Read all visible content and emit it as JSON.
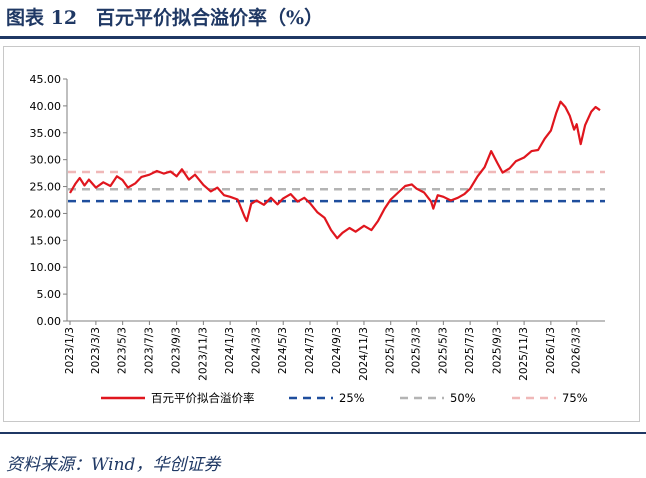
{
  "header": {
    "title": "图表 12　百元平价拟合溢价率（%）"
  },
  "footer": {
    "source": "资料来源：Wind，华创证券"
  },
  "colors": {
    "title": "#1f3864",
    "series_main": "#e0161e",
    "p25": "#1f4e9d",
    "p50": "#b4b4b4",
    "p75": "#f0b8b8"
  },
  "chart_data": {
    "type": "line",
    "ylim": [
      0,
      45
    ],
    "yticks": [
      "0.00",
      "5.00",
      "10.00",
      "15.00",
      "20.00",
      "25.00",
      "30.00",
      "35.00",
      "40.00",
      "45.00"
    ],
    "xticks": [
      "2023/1/3",
      "2023/3/3",
      "2023/5/3",
      "2023/7/3",
      "2023/9/3",
      "2023/11/3",
      "2024/1/3",
      "2024/3/3",
      "2024/5/3",
      "2024/7/3",
      "2024/9/3",
      "2024/11/3",
      "2025/1/3",
      "2025/3/3",
      "2025/5/3",
      "2025/7/3",
      "2025/9/3",
      "2025/11/3",
      "2026/1/3",
      "2026/3/3"
    ],
    "series": [
      {
        "name": "百元平价拟合溢价率",
        "color": "#e0161e",
        "points": [
          [
            "2023/1/3",
            23.8
          ],
          [
            "2023/1/15",
            25.5
          ],
          [
            "2023/1/25",
            26.6
          ],
          [
            "2023/2/5",
            25.2
          ],
          [
            "2023/2/15",
            26.3
          ],
          [
            "2023/3/3",
            24.8
          ],
          [
            "2023/3/20",
            25.8
          ],
          [
            "2023/4/5",
            25.1
          ],
          [
            "2023/4/20",
            26.9
          ],
          [
            "2023/5/3",
            26.2
          ],
          [
            "2023/5/15",
            24.8
          ],
          [
            "2023/6/1",
            25.6
          ],
          [
            "2023/6/15",
            26.8
          ],
          [
            "2023/7/3",
            27.2
          ],
          [
            "2023/7/20",
            27.9
          ],
          [
            "2023/8/5",
            27.4
          ],
          [
            "2023/8/20",
            27.8
          ],
          [
            "2023/9/3",
            26.9
          ],
          [
            "2023/9/15",
            28.2
          ],
          [
            "2023/10/1",
            26.3
          ],
          [
            "2023/10/15",
            27.2
          ],
          [
            "2023/11/3",
            25.3
          ],
          [
            "2023/11/20",
            24.1
          ],
          [
            "2023/12/5",
            24.8
          ],
          [
            "2023/12/20",
            23.4
          ],
          [
            "2024/1/3",
            23.1
          ],
          [
            "2024/1/20",
            22.6
          ],
          [
            "2024/2/5",
            19.4
          ],
          [
            "2024/2/10",
            18.6
          ],
          [
            "2024/2/20",
            21.8
          ],
          [
            "2024/3/3",
            22.4
          ],
          [
            "2024/3/20",
            21.6
          ],
          [
            "2024/4/5",
            22.9
          ],
          [
            "2024/4/20",
            21.7
          ],
          [
            "2024/5/3",
            22.8
          ],
          [
            "2024/5/20",
            23.6
          ],
          [
            "2024/6/5",
            22.2
          ],
          [
            "2024/6/20",
            22.9
          ],
          [
            "2024/7/3",
            21.9
          ],
          [
            "2024/7/20",
            20.2
          ],
          [
            "2024/8/5",
            19.2
          ],
          [
            "2024/8/20",
            16.9
          ],
          [
            "2024/9/3",
            15.4
          ],
          [
            "2024/9/15",
            16.4
          ],
          [
            "2024/10/1",
            17.3
          ],
          [
            "2024/10/15",
            16.6
          ],
          [
            "2024/11/3",
            17.7
          ],
          [
            "2024/11/20",
            16.9
          ],
          [
            "2024/12/5",
            18.6
          ],
          [
            "2024/12/20",
            20.9
          ],
          [
            "2025/1/3",
            22.6
          ],
          [
            "2025/1/20",
            23.9
          ],
          [
            "2025/2/5",
            25.1
          ],
          [
            "2025/2/20",
            25.4
          ],
          [
            "2025/3/3",
            24.6
          ],
          [
            "2025/3/20",
            23.9
          ],
          [
            "2025/4/5",
            22.2
          ],
          [
            "2025/4/10",
            20.9
          ],
          [
            "2025/4/20",
            23.4
          ],
          [
            "2025/5/3",
            23.1
          ],
          [
            "2025/5/20",
            22.4
          ],
          [
            "2025/6/5",
            22.9
          ],
          [
            "2025/6/20",
            23.6
          ],
          [
            "2025/7/3",
            24.6
          ],
          [
            "2025/7/20",
            26.9
          ],
          [
            "2025/8/5",
            28.6
          ],
          [
            "2025/8/20",
            31.6
          ],
          [
            "2025/9/3",
            29.4
          ],
          [
            "2025/9/15",
            27.6
          ],
          [
            "2025/10/1",
            28.4
          ],
          [
            "2025/10/15",
            29.7
          ],
          [
            "2025/11/3",
            30.4
          ],
          [
            "2025/11/20",
            31.6
          ],
          [
            "2025/12/5",
            31.8
          ],
          [
            "2025/12/20",
            33.9
          ],
          [
            "2026/1/3",
            35.4
          ],
          [
            "2026/1/15",
            38.6
          ],
          [
            "2026/1/25",
            40.8
          ],
          [
            "2026/2/5",
            39.8
          ],
          [
            "2026/2/15",
            38.2
          ],
          [
            "2026/2/25",
            35.6
          ],
          [
            "2026/3/3",
            36.6
          ],
          [
            "2026/3/12",
            32.9
          ],
          [
            "2026/3/22",
            36.4
          ],
          [
            "2026/4/5",
            38.9
          ],
          [
            "2026/4/15",
            39.8
          ],
          [
            "2026/4/25",
            39.2
          ]
        ]
      },
      {
        "name": "25%",
        "value": 22.3,
        "color": "#1f4e9d",
        "style": "dashed"
      },
      {
        "name": "50%",
        "value": 24.5,
        "color": "#b4b4b4",
        "style": "dashed"
      },
      {
        "name": "75%",
        "value": 27.7,
        "color": "#f0b8b8",
        "style": "dashed"
      }
    ]
  }
}
